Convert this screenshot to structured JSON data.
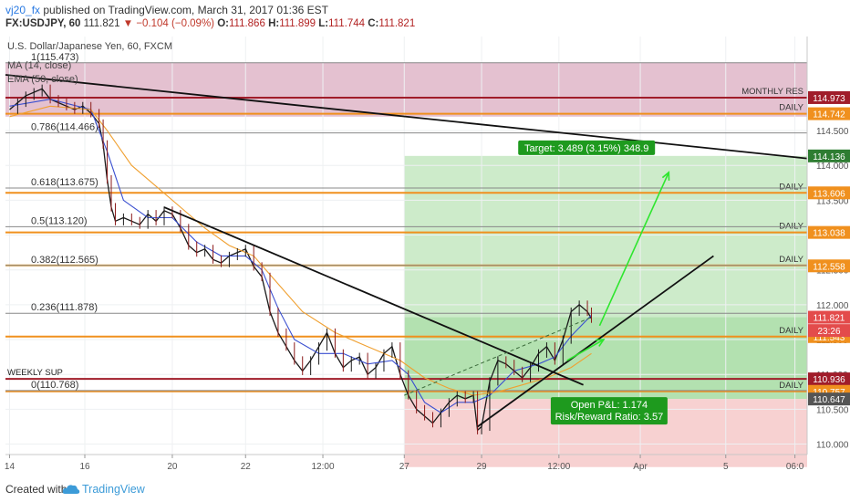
{
  "header": {
    "author": "vj20_fx",
    "published_text": "published on TradingView.com, March 31, 2017 01:36 EST",
    "symbol": "FX:USDJPY, 60",
    "last": "111.821",
    "change": "−0.104 (−0.09%)",
    "ohlc": {
      "o": "111.866",
      "h": "111.899",
      "l": "111.744",
      "c": "111.821"
    },
    "legend_title": "U.S. Dollar/Japanese Yen, 60, FXCM",
    "legend_ma": "MA (14, close)",
    "legend_ema": "EMA (50, close)"
  },
  "footer": {
    "created_with": "Created with",
    "brand": "TradingView"
  },
  "chart_data": {
    "type": "line",
    "title": "U.S. Dollar/Japanese Yen, 60, FXCM",
    "ylim": [
      109.85,
      115.85
    ],
    "y_ticks": [
      "114.500",
      "114.000",
      "113.500",
      "113.000",
      "112.500",
      "112.000",
      "111.500",
      "111.000",
      "110.500",
      "110.000"
    ],
    "y_tick_values": [
      114.5,
      114.0,
      113.5,
      113.0,
      112.5,
      112.0,
      111.5,
      111.0,
      110.5,
      110.0
    ],
    "x_ticks": [
      "14",
      "16",
      "20",
      "22",
      "12:00",
      "27",
      "29",
      "12:00",
      "Apr",
      "5",
      "06:0"
    ],
    "x_tick_values": [
      0,
      18.5,
      40,
      58,
      77,
      97,
      116,
      135,
      155,
      176,
      193
    ],
    "xlim": [
      -1,
      196
    ],
    "fib_levels": [
      {
        "label": "1(115.473)",
        "price": 115.473
      },
      {
        "label": "0.786(114.466)",
        "price": 114.466
      },
      {
        "label": "0.618(113.675)",
        "price": 113.675
      },
      {
        "label": "0.5(113.120)",
        "price": 113.12
      },
      {
        "label": "0.382(112.565)",
        "price": 112.565
      },
      {
        "label": "0.236(111.878)",
        "price": 111.878
      },
      {
        "label": "0(110.768)",
        "price": 110.768
      }
    ],
    "levels": [
      {
        "label": "MONTHLY RES",
        "price": 114.973,
        "tag": "114.973",
        "color": "#a01d2a"
      },
      {
        "label": "DAILY",
        "price": 114.742,
        "tag": "114.742",
        "color": "#f0901e"
      },
      {
        "label": "DAILY",
        "price": 113.606,
        "tag": "113.606",
        "color": "#f0901e"
      },
      {
        "label": "DAILY",
        "price": 113.038,
        "tag": "113.038",
        "color": "#f0901e"
      },
      {
        "label": "DAILY",
        "price": 112.565,
        "tag": "",
        "color": "#e8a030"
      },
      {
        "label": "DAILY",
        "price": 111.543,
        "tag": "111.543",
        "color": "#f0901e"
      },
      {
        "label": "WEEKLY SUP",
        "price": 110.936,
        "tag": "110.936",
        "color": "#a01d2a"
      },
      {
        "label": "DAILY",
        "price": 110.757,
        "tag": "110.757",
        "color": "#f0901e"
      }
    ],
    "price_tags": [
      {
        "text": "114.136",
        "price": 114.136,
        "color": "#2e7d32"
      },
      {
        "text": "112.558",
        "price": 112.558,
        "color": "#f0901e"
      },
      {
        "text": "111.821",
        "price": 111.821,
        "color": "#e34b4b"
      },
      {
        "text": "23:26",
        "price": 111.63,
        "color": "#e34b4b"
      },
      {
        "text": "110.647",
        "price": 110.647,
        "color": "#555555"
      }
    ],
    "position": {
      "entry": 110.647,
      "target": 114.136,
      "stop": 109.67,
      "target_label": "Target: 3.489 (3.15%) 348.9",
      "pnl_label": "Open P&L: 1.174",
      "rr_label": "Risk/Reward Ratio: 3.57"
    },
    "series": [
      {
        "name": "USDJPY",
        "values": [
          [
            0,
            114.8
          ],
          [
            2,
            114.9
          ],
          [
            4,
            115.0
          ],
          [
            6,
            115.05
          ],
          [
            8,
            115.1
          ],
          [
            10,
            114.95
          ],
          [
            12,
            114.9
          ],
          [
            14,
            114.85
          ],
          [
            16,
            114.8
          ],
          [
            18,
            114.85
          ],
          [
            20,
            114.75
          ],
          [
            22,
            114.6
          ],
          [
            23,
            114.3
          ],
          [
            24,
            113.8
          ],
          [
            25,
            113.4
          ],
          [
            26,
            113.2
          ],
          [
            28,
            113.25
          ],
          [
            30,
            113.2
          ],
          [
            32,
            113.15
          ],
          [
            34,
            113.3
          ],
          [
            36,
            113.2
          ],
          [
            38,
            113.35
          ],
          [
            40,
            113.3
          ],
          [
            42,
            113.1
          ],
          [
            44,
            112.85
          ],
          [
            46,
            112.75
          ],
          [
            48,
            112.8
          ],
          [
            50,
            112.65
          ],
          [
            52,
            112.6
          ],
          [
            54,
            112.7
          ],
          [
            56,
            112.75
          ],
          [
            58,
            112.8
          ],
          [
            60,
            112.55
          ],
          [
            62,
            112.4
          ],
          [
            64,
            111.9
          ],
          [
            66,
            111.6
          ],
          [
            68,
            111.4
          ],
          [
            70,
            111.2
          ],
          [
            72,
            111.05
          ],
          [
            74,
            111.2
          ],
          [
            76,
            111.4
          ],
          [
            78,
            111.6
          ],
          [
            80,
            111.3
          ],
          [
            82,
            111.1
          ],
          [
            84,
            111.2
          ],
          [
            86,
            111.25
          ],
          [
            88,
            111.0
          ],
          [
            90,
            111.1
          ],
          [
            92,
            111.3
          ],
          [
            94,
            111.4
          ],
          [
            96,
            111.0
          ],
          [
            98,
            110.7
          ],
          [
            100,
            110.5
          ],
          [
            102,
            110.4
          ],
          [
            104,
            110.3
          ],
          [
            106,
            110.45
          ],
          [
            108,
            110.6
          ],
          [
            110,
            110.7
          ],
          [
            112,
            110.65
          ],
          [
            114,
            110.7
          ],
          [
            115,
            110.2
          ],
          [
            116,
            110.25
          ],
          [
            118,
            110.9
          ],
          [
            120,
            111.2
          ],
          [
            122,
            111.15
          ],
          [
            124,
            111.05
          ],
          [
            126,
            110.95
          ],
          [
            128,
            111.1
          ],
          [
            130,
            111.3
          ],
          [
            132,
            111.4
          ],
          [
            134,
            111.2
          ],
          [
            136,
            111.5
          ],
          [
            138,
            111.9
          ],
          [
            140,
            112.0
          ],
          [
            142,
            111.9
          ],
          [
            143,
            111.8
          ]
        ]
      },
      {
        "name": "MA (14, close)",
        "values": [
          [
            0,
            114.85
          ],
          [
            10,
            114.95
          ],
          [
            20,
            114.8
          ],
          [
            24,
            114.2
          ],
          [
            28,
            113.5
          ],
          [
            34,
            113.25
          ],
          [
            40,
            113.25
          ],
          [
            46,
            112.9
          ],
          [
            52,
            112.7
          ],
          [
            58,
            112.7
          ],
          [
            62,
            112.5
          ],
          [
            66,
            111.95
          ],
          [
            70,
            111.5
          ],
          [
            76,
            111.3
          ],
          [
            82,
            111.3
          ],
          [
            88,
            111.15
          ],
          [
            94,
            111.2
          ],
          [
            98,
            111.0
          ],
          [
            102,
            110.6
          ],
          [
            106,
            110.45
          ],
          [
            110,
            110.6
          ],
          [
            114,
            110.6
          ],
          [
            118,
            110.7
          ],
          [
            124,
            111.05
          ],
          [
            130,
            111.15
          ],
          [
            134,
            111.25
          ],
          [
            138,
            111.55
          ],
          [
            143,
            111.85
          ]
        ]
      },
      {
        "name": "EMA (50, close)",
        "values": [
          [
            0,
            114.7
          ],
          [
            10,
            114.85
          ],
          [
            20,
            114.8
          ],
          [
            24,
            114.5
          ],
          [
            30,
            114.0
          ],
          [
            36,
            113.7
          ],
          [
            42,
            113.4
          ],
          [
            48,
            113.1
          ],
          [
            54,
            112.85
          ],
          [
            60,
            112.7
          ],
          [
            66,
            112.3
          ],
          [
            72,
            111.9
          ],
          [
            80,
            111.6
          ],
          [
            88,
            111.4
          ],
          [
            96,
            111.2
          ],
          [
            102,
            110.95
          ],
          [
            108,
            110.8
          ],
          [
            114,
            110.7
          ],
          [
            120,
            110.75
          ],
          [
            126,
            110.85
          ],
          [
            132,
            110.95
          ],
          [
            138,
            111.1
          ],
          [
            143,
            111.3
          ]
        ]
      }
    ],
    "trendlines": [
      {
        "name": "long-downtrend",
        "from": [
          -1,
          115.3
        ],
        "to": [
          196,
          114.1
        ]
      },
      {
        "name": "downtrend",
        "from": [
          38,
          113.4
        ],
        "to": [
          141,
          110.85
        ]
      },
      {
        "name": "uptrend",
        "from": [
          115,
          110.25
        ],
        "to": [
          173,
          112.7
        ]
      }
    ],
    "arrows": [
      {
        "from": [
          145,
          111.7
        ],
        "to": [
          162,
          113.9
        ]
      },
      {
        "from": [
          137,
          111.2
        ],
        "to": [
          146,
          111.5
        ]
      }
    ]
  }
}
